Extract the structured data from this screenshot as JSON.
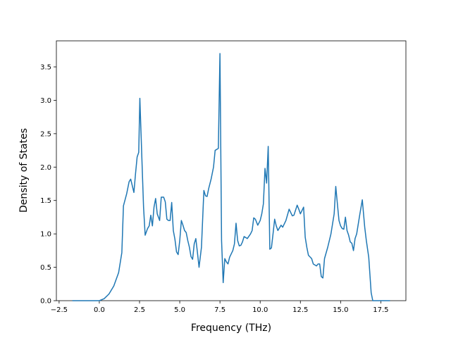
{
  "chart_data": {
    "type": "line",
    "x_label": "Frequency (THz)",
    "y_label": "Density of States",
    "xlim": [
      -2.67,
      19.06
    ],
    "ylim": [
      0,
      3.89
    ],
    "xticks": [
      {
        "value": -2.5,
        "label": "−2.5"
      },
      {
        "value": 0,
        "label": "0.0"
      },
      {
        "value": 2.5,
        "label": "2.5"
      },
      {
        "value": 5,
        "label": "5.0"
      },
      {
        "value": 7.5,
        "label": "7.5"
      },
      {
        "value": 10,
        "label": "10.0"
      },
      {
        "value": 12.5,
        "label": "12.5"
      },
      {
        "value": 15,
        "label": "15.0"
      },
      {
        "value": 17.5,
        "label": "17.5"
      }
    ],
    "yticks": [
      {
        "value": 0,
        "label": "0.0"
      },
      {
        "value": 0.5,
        "label": "0.5"
      },
      {
        "value": 1,
        "label": "1.0"
      },
      {
        "value": 1.5,
        "label": "1.5"
      },
      {
        "value": 2,
        "label": "2.0"
      },
      {
        "value": 2.5,
        "label": "2.5"
      },
      {
        "value": 3,
        "label": "3.0"
      },
      {
        "value": 3.5,
        "label": "3.5"
      }
    ],
    "x": [
      -1.68,
      0,
      0.3,
      0.6,
      0.9,
      1.2,
      1.4,
      1.5,
      1.7,
      1.85,
      1.95,
      2.05,
      2.15,
      2.25,
      2.35,
      2.45,
      2.52,
      2.65,
      2.75,
      2.85,
      3.0,
      3.1,
      3.2,
      3.3,
      3.4,
      3.5,
      3.6,
      3.75,
      3.85,
      4.0,
      4.1,
      4.2,
      4.3,
      4.4,
      4.5,
      4.6,
      4.7,
      4.8,
      4.9,
      5.0,
      5.1,
      5.2,
      5.3,
      5.4,
      5.5,
      5.6,
      5.7,
      5.8,
      5.9,
      6.0,
      6.1,
      6.2,
      6.35,
      6.5,
      6.6,
      6.7,
      6.8,
      6.95,
      7.1,
      7.2,
      7.4,
      7.5,
      7.6,
      7.7,
      7.8,
      7.9,
      8.0,
      8.1,
      8.3,
      8.4,
      8.5,
      8.6,
      8.7,
      8.8,
      8.9,
      9.0,
      9.2,
      9.4,
      9.5,
      9.6,
      9.7,
      9.85,
      10.0,
      10.1,
      10.2,
      10.3,
      10.4,
      10.5,
      10.6,
      10.7,
      10.8,
      10.9,
      11.0,
      11.1,
      11.3,
      11.4,
      11.6,
      11.8,
      11.9,
      12.0,
      12.1,
      12.3,
      12.4,
      12.5,
      12.7,
      12.8,
      12.9,
      13.0,
      13.2,
      13.3,
      13.5,
      13.6,
      13.7,
      13.8,
      13.9,
      14.0,
      14.2,
      14.4,
      14.6,
      14.7,
      14.8,
      14.9,
      15.0,
      15.1,
      15.2,
      15.3,
      15.4,
      15.5,
      15.6,
      15.7,
      15.8,
      15.9,
      16.0,
      16.2,
      16.35,
      16.5,
      16.6,
      16.75,
      16.9,
      17.0,
      18.07
    ],
    "series": [
      {
        "color": "#1f77b4",
        "values": [
          0,
          0,
          0.03,
          0.1,
          0.22,
          0.42,
          0.72,
          1.42,
          1.6,
          1.78,
          1.82,
          1.72,
          1.62,
          1.9,
          2.15,
          2.22,
          3.03,
          2.1,
          1.4,
          0.98,
          1.08,
          1.12,
          1.28,
          1.12,
          1.4,
          1.53,
          1.3,
          1.2,
          1.55,
          1.55,
          1.48,
          1.22,
          1.2,
          1.2,
          1.47,
          1.05,
          0.92,
          0.73,
          0.69,
          0.9,
          1.2,
          1.13,
          1.05,
          1.02,
          0.9,
          0.8,
          0.66,
          0.62,
          0.85,
          0.93,
          0.72,
          0.5,
          0.8,
          1.65,
          1.57,
          1.56,
          1.68,
          1.82,
          2.0,
          2.25,
          2.28,
          3.7,
          0.9,
          0.27,
          0.63,
          0.58,
          0.55,
          0.65,
          0.75,
          0.85,
          1.16,
          0.9,
          0.82,
          0.83,
          0.88,
          0.96,
          0.93,
          1.0,
          1.05,
          1.24,
          1.22,
          1.13,
          1.2,
          1.3,
          1.45,
          1.98,
          1.76,
          2.31,
          0.77,
          0.79,
          1.0,
          1.22,
          1.12,
          1.05,
          1.13,
          1.1,
          1.2,
          1.37,
          1.32,
          1.27,
          1.28,
          1.43,
          1.37,
          1.3,
          1.4,
          0.95,
          0.8,
          0.68,
          0.63,
          0.55,
          0.52,
          0.55,
          0.55,
          0.36,
          0.34,
          0.63,
          0.8,
          1.0,
          1.3,
          1.71,
          1.45,
          1.2,
          1.12,
          1.08,
          1.07,
          1.25,
          1.05,
          0.98,
          0.88,
          0.86,
          0.75,
          0.93,
          1.0,
          1.3,
          1.51,
          1.1,
          0.9,
          0.65,
          0.12,
          0,
          0
        ]
      }
    ]
  }
}
